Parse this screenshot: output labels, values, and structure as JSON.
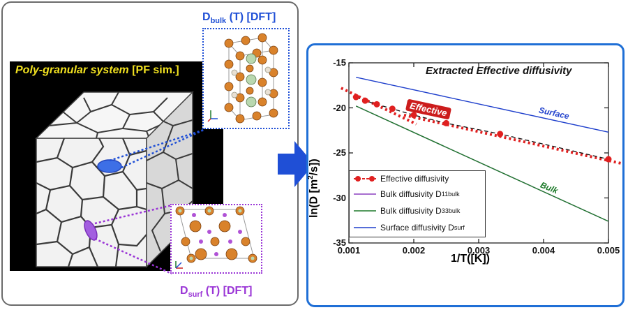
{
  "left": {
    "poly_title_main": "Poly-granular system",
    "poly_title_tag": "[PF sim.]",
    "bulk_label_D": "D",
    "bulk_label_sub": "bulk",
    "bulk_label_rest": " (T) [DFT]",
    "surf_label_D": "D",
    "surf_label_sub": "surf",
    "surf_label_rest": " (T) [DFT]",
    "colors": {
      "bulk": "#1f4fd6",
      "surf": "#9a35d6",
      "title": "#f0e020",
      "atom_orange": "#d9822b",
      "atom_green": "#b9d8b0"
    }
  },
  "arrow": {
    "icon": "right-arrow-icon",
    "color": "#1f4fd6"
  },
  "plot": {
    "title": "Extracted Effective diffusivity",
    "ylabel": "ln(D [m²/s])",
    "xlabel": "1/T([K])",
    "xticks": [
      "0.001",
      "0.002",
      "0.003",
      "0.004",
      "0.005"
    ],
    "yticks": [
      "-15",
      "-20",
      "-25",
      "-30",
      "-35"
    ],
    "annotation_surface": "Surface",
    "annotation_bulk": "Bulk",
    "annotation_effective": "Effective",
    "legend": [
      {
        "label": "Effective diffusivity",
        "sup": ""
      },
      {
        "label": "Bulk diffusivity D",
        "sub": "11",
        "sup": "bulk"
      },
      {
        "label": "Bulk diffusivity D",
        "sub": "33",
        "sup": "bulk"
      },
      {
        "label": "Surface diffusivity D",
        "sub": "",
        "sup": "surf"
      }
    ],
    "colors": {
      "effective": "#e02020",
      "bulk11": "#8a3fbf",
      "bulk33": "#1e7a2a",
      "surface": "#1e3fcc",
      "frame": "#1f6fd6"
    }
  },
  "chart_data": {
    "type": "line",
    "title": "Extracted Effective diffusivity",
    "xlabel": "1/T([K])",
    "ylabel": "ln(D [m²/s])",
    "xlim": [
      0.001,
      0.005
    ],
    "ylim": [
      -35,
      -15
    ],
    "series": [
      {
        "name": "Effective diffusivity",
        "x": [
          0.00111,
          0.00125,
          0.00143,
          0.00167,
          0.002,
          0.0025,
          0.00333,
          0.005
        ],
        "values": [
          -18.8,
          -19.2,
          -19.6,
          -20.1,
          -20.8,
          -21.7,
          -22.9,
          -25.7
        ]
      },
      {
        "name": "Bulk diffusivity D11 bulk",
        "x": [
          0.00111,
          0.005
        ],
        "values": [
          -19.8,
          -32.6
        ]
      },
      {
        "name": "Bulk diffusivity D33 bulk",
        "x": [
          0.00111,
          0.005
        ],
        "values": [
          -19.8,
          -32.6
        ]
      },
      {
        "name": "Surface diffusivity Dsurf",
        "x": [
          0.00111,
          0.005
        ],
        "values": [
          -16.6,
          -22.7
        ]
      }
    ],
    "grid": false,
    "legend_position": "bottom-left"
  }
}
